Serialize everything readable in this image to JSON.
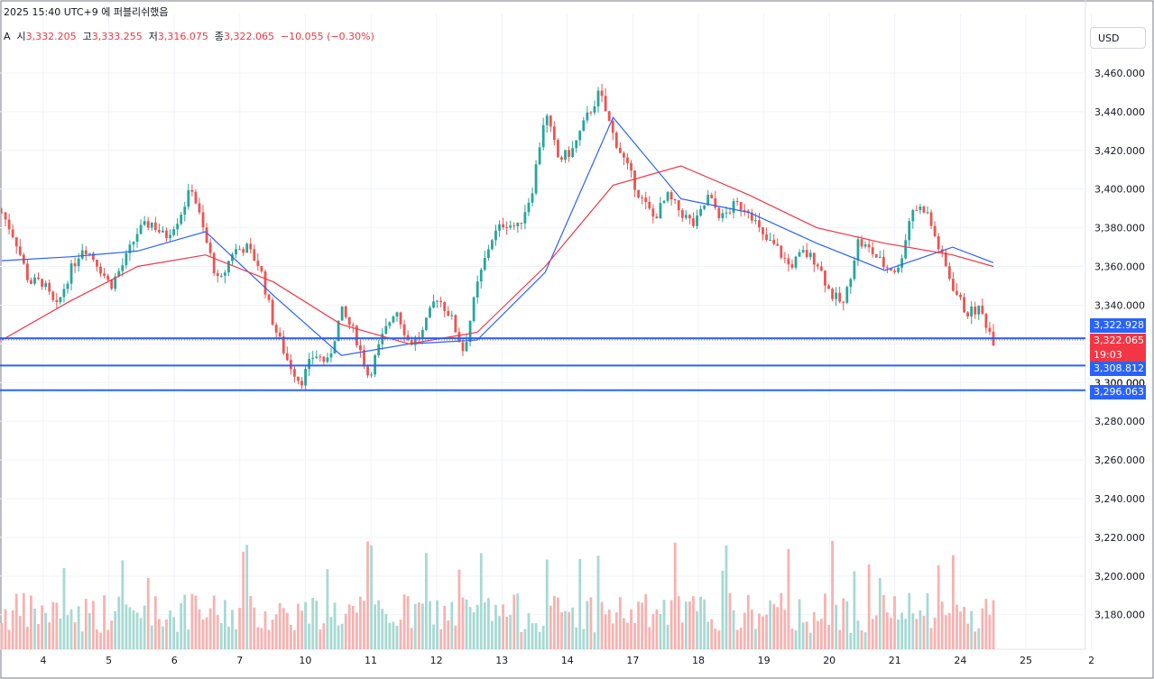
{
  "header": {
    "datetime": "2025 15:40 UTC+9 에 퍼블리쉬했음",
    "series_prefix": "A",
    "open_label": "시",
    "open": "3,332.205",
    "high_label": "고",
    "high": "3,333.255",
    "low_label": "저",
    "low": "3,316.075",
    "close_label": "종",
    "close": "3,322.065",
    "change": "−10.055 (−0.30%)"
  },
  "currency_button": "USD",
  "price_tags": {
    "upper_line": "3,322.928",
    "last_price": "3,322.065",
    "countdown": "19:03",
    "middle_line": "3,308.812",
    "lower_line": "3,296.063"
  },
  "colors": {
    "up": "#26a69a",
    "down": "#ef5350",
    "ma_fast": "#2962ff",
    "ma_slow": "#f23645",
    "level_line": "#2962ff",
    "grid": "#f0f3fa"
  },
  "chart_data": {
    "type": "candlestick",
    "y_axis": {
      "range": [
        3160,
        3475
      ],
      "ticks": [
        "3,460.000",
        "3,440.000",
        "3,420.000",
        "3,400.000",
        "3,380.000",
        "3,360.000",
        "3,340.000",
        "3,320.000",
        "3,300.000",
        "3,280.000",
        "3,260.000",
        "3,240.000",
        "3,220.000",
        "3,200.000",
        "3,180.000"
      ],
      "tick_values": [
        3460,
        3440,
        3420,
        3400,
        3380,
        3360,
        3340,
        3320,
        3300,
        3280,
        3260,
        3240,
        3220,
        3200,
        3180
      ]
    },
    "x_axis": {
      "labels": [
        "4",
        "5",
        "6",
        "7",
        "10",
        "11",
        "12",
        "13",
        "14",
        "17",
        "18",
        "19",
        "20",
        "21",
        "24",
        "25",
        "2"
      ]
    },
    "horizontal_levels": [
      3322.928,
      3308.812,
      3296.063
    ],
    "last_price": 3322.065,
    "price_path": [
      [
        3388,
        3388
      ],
      [
        3367,
        3374
      ],
      [
        3365,
        3352
      ],
      [
        3349,
        3352
      ],
      [
        3338,
        3338
      ],
      [
        3355,
        3357
      ],
      [
        3363,
        3371
      ],
      [
        3362,
        3362
      ],
      [
        3350,
        3350
      ],
      [
        3362,
        3362
      ],
      [
        3372,
        3378
      ],
      [
        3382,
        3383
      ],
      [
        3375,
        3375
      ],
      [
        3389,
        3385
      ],
      [
        3390,
        3401
      ],
      [
        3375,
        3374
      ],
      [
        3350,
        3350
      ],
      [
        3368,
        3368
      ],
      [
        3367,
        3370
      ],
      [
        3360,
        3360
      ],
      [
        3335,
        3330
      ],
      [
        3312,
        3312
      ],
      [
        3307,
        3300
      ],
      [
        3314,
        3315
      ],
      [
        3310,
        3310
      ],
      [
        3332,
        3337
      ],
      [
        3325,
        3325
      ],
      [
        3305,
        3303
      ],
      [
        3322,
        3323
      ],
      [
        3334,
        3339
      ],
      [
        3320,
        3320
      ],
      [
        3328,
        3326
      ],
      [
        3342,
        3345
      ],
      [
        3335,
        3335
      ],
      [
        3318,
        3316
      ],
      [
        3348,
        3350
      ],
      [
        3370,
        3374
      ],
      [
        3380,
        3383
      ],
      [
        3380,
        3380
      ],
      [
        3395,
        3398
      ],
      [
        3430,
        3440
      ],
      [
        3415,
        3415
      ],
      [
        3420,
        3420
      ],
      [
        3433,
        3436
      ],
      [
        3448,
        3450
      ],
      [
        3428,
        3428
      ],
      [
        3410,
        3412
      ],
      [
        3398,
        3396
      ],
      [
        3385,
        3385
      ],
      [
        3392,
        3396
      ],
      [
        3382,
        3388
      ],
      [
        3381,
        3381
      ],
      [
        3392,
        3396
      ],
      [
        3381,
        3385
      ],
      [
        3392,
        3392
      ],
      [
        3390,
        3390
      ],
      [
        3375,
        3375
      ],
      [
        3371,
        3370
      ],
      [
        3362,
        3360
      ],
      [
        3363,
        3367
      ],
      [
        3365,
        3363
      ],
      [
        3348,
        3346
      ],
      [
        3342,
        3340
      ],
      [
        3370,
        3373
      ],
      [
        3368,
        3368
      ],
      [
        3360,
        3360
      ],
      [
        3358,
        3358
      ],
      [
        3386,
        3390
      ],
      [
        3385,
        3390
      ],
      [
        3370,
        3369
      ],
      [
        3350,
        3350
      ],
      [
        3342,
        3336
      ],
      [
        3338,
        3338
      ],
      [
        3322,
        3322
      ]
    ],
    "moving_average_fast": [
      [
        0,
        3363
      ],
      [
        5,
        3365
      ],
      [
        10,
        3368
      ],
      [
        15,
        3378
      ],
      [
        20,
        3345
      ],
      [
        25,
        3314
      ],
      [
        30,
        3320
      ],
      [
        35,
        3322
      ],
      [
        40,
        3357
      ],
      [
        45,
        3437
      ],
      [
        50,
        3395
      ],
      [
        55,
        3388
      ],
      [
        60,
        3372
      ],
      [
        65,
        3358
      ],
      [
        70,
        3370
      ],
      [
        73,
        3362
      ]
    ],
    "moving_average_slow": [
      [
        0,
        3322
      ],
      [
        5,
        3342
      ],
      [
        10,
        3360
      ],
      [
        15,
        3366
      ],
      [
        20,
        3352
      ],
      [
        25,
        3330
      ],
      [
        30,
        3320
      ],
      [
        35,
        3326
      ],
      [
        40,
        3360
      ],
      [
        45,
        3402
      ],
      [
        50,
        3412
      ],
      [
        55,
        3397
      ],
      [
        60,
        3380
      ],
      [
        65,
        3372
      ],
      [
        70,
        3366
      ],
      [
        73,
        3360
      ]
    ],
    "volume_range": [
      0,
      1
    ]
  }
}
